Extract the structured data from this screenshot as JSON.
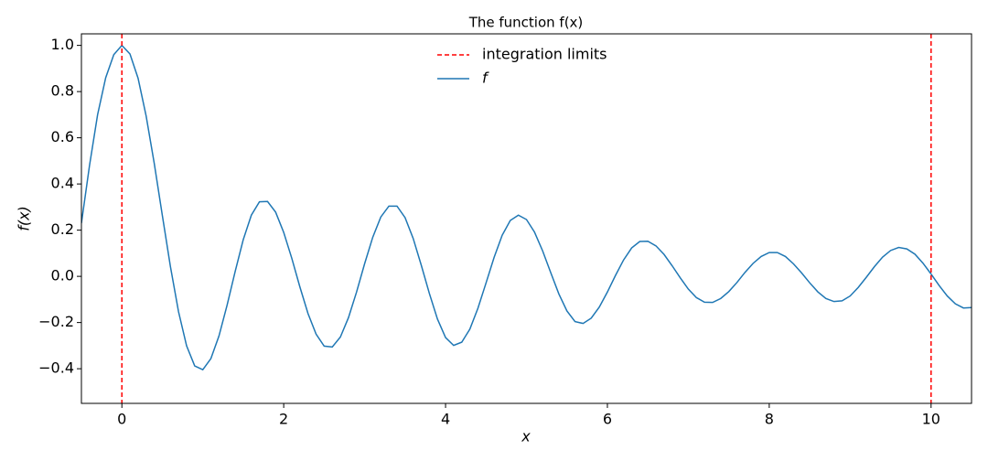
{
  "chart_data": {
    "type": "line",
    "title": "The function f(x)",
    "x_label": "x",
    "y_label": "f(x)",
    "xlim": [
      -0.5,
      10.5
    ],
    "ylim": [
      -0.55,
      1.05
    ],
    "xticks": [
      0,
      2,
      4,
      6,
      8,
      10
    ],
    "yticks": [
      {
        "value": -0.4,
        "label": "−0.4"
      },
      {
        "value": -0.2,
        "label": "−0.2"
      },
      {
        "value": 0,
        "label": "0.0"
      },
      {
        "value": 0.2,
        "label": "0.2"
      },
      {
        "value": 0.4,
        "label": "0.4"
      },
      {
        "value": 0.6,
        "label": "0.6"
      },
      {
        "value": 0.8,
        "label": "0.8"
      },
      {
        "value": 1,
        "label": "1.0"
      }
    ],
    "legend": "upper center",
    "vlines": {
      "name": "integration limits",
      "color": "#ff0000",
      "x": [
        0,
        10
      ]
    },
    "x": [
      -0.5,
      -0.4,
      -0.3,
      -0.2,
      -0.1,
      0,
      0.1,
      0.2,
      0.3,
      0.4,
      0.5,
      0.6,
      0.7,
      0.8,
      0.9,
      1,
      1.1,
      1.2,
      1.3,
      1.4,
      1.5,
      1.6,
      1.7,
      1.8,
      1.9,
      2,
      2.1,
      2.2,
      2.3,
      2.4,
      2.5,
      2.6,
      2.7,
      2.8,
      2.9,
      3,
      3.1,
      3.2,
      3.3,
      3.4,
      3.5,
      3.6,
      3.7,
      3.8,
      3.9,
      4,
      4.1,
      4.2,
      4.3,
      4.4,
      4.5,
      4.6,
      4.7,
      4.8,
      4.9,
      5,
      5.1,
      5.2,
      5.3,
      5.4,
      5.5,
      5.6,
      5.7,
      5.8,
      5.9,
      6,
      6.1,
      6.2,
      6.3,
      6.4,
      6.5,
      6.6,
      6.7,
      6.8,
      6.9,
      7,
      7.1,
      7.2,
      7.3,
      7.4,
      7.5,
      7.6,
      7.7,
      7.8,
      7.9,
      8,
      8.1,
      8.2,
      8.3,
      8.4,
      8.5,
      8.6,
      8.7,
      8.8,
      8.9,
      9,
      9.1,
      9.2,
      9.3,
      9.4,
      9.5,
      9.6,
      9.7,
      9.8,
      9.9,
      10,
      10.1,
      10.2,
      10.3,
      10.4,
      10.5
    ],
    "series": [
      {
        "name": "f",
        "color": "#1f77b4",
        "values": [
          0.23,
          0.48,
          0.7,
          0.86,
          0.96,
          1.0,
          0.963,
          0.858,
          0.694,
          0.489,
          0.264,
          0.042,
          -0.153,
          -0.301,
          -0.388,
          -0.404,
          -0.356,
          -0.258,
          -0.125,
          0.021,
          0.159,
          0.265,
          0.323,
          0.324,
          0.278,
          0.19,
          0.078,
          -0.046,
          -0.161,
          -0.25,
          -0.302,
          -0.306,
          -0.263,
          -0.179,
          -0.068,
          0.055,
          0.169,
          0.257,
          0.304,
          0.304,
          0.254,
          0.164,
          0.048,
          -0.074,
          -0.185,
          -0.265,
          -0.299,
          -0.285,
          -0.229,
          -0.138,
          -0.029,
          0.082,
          0.178,
          0.242,
          0.265,
          0.246,
          0.191,
          0.11,
          0.016,
          -0.076,
          -0.15,
          -0.196,
          -0.204,
          -0.181,
          -0.133,
          -0.068,
          0.004,
          0.071,
          0.123,
          0.151,
          0.152,
          0.132,
          0.095,
          0.046,
          -0.006,
          -0.055,
          -0.092,
          -0.112,
          -0.113,
          -0.096,
          -0.066,
          -0.027,
          0.017,
          0.056,
          0.086,
          0.103,
          0.103,
          0.086,
          0.054,
          0.015,
          -0.028,
          -0.067,
          -0.096,
          -0.109,
          -0.106,
          -0.085,
          -0.048,
          -0.004,
          0.042,
          0.083,
          0.112,
          0.125,
          0.119,
          0.096,
          0.057,
          0.01,
          -0.04,
          -0.085,
          -0.119,
          -0.137,
          -0.135
        ]
      }
    ]
  }
}
